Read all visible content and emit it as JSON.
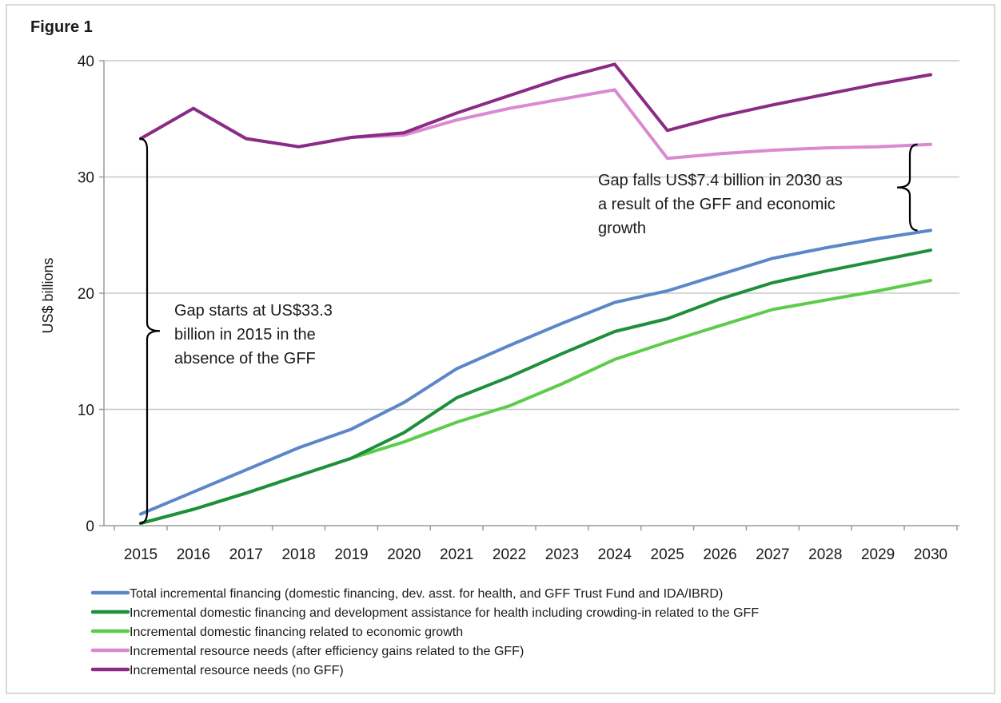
{
  "figure_label": "Figure 1",
  "colors": {
    "frame": "#d9d9d9",
    "grid": "#c8c8c8",
    "axis": "#9a9a9a",
    "text": "#1a1a1a",
    "bracket": "#000000"
  },
  "chart_data": {
    "type": "line",
    "title": "",
    "xlabel": "",
    "ylabel": "US$ billions",
    "ylim": [
      0,
      40
    ],
    "yticks": [
      0,
      10,
      20,
      30,
      40
    ],
    "grid": true,
    "legend_position": "bottom",
    "categories": [
      "2015",
      "2016",
      "2017",
      "2018",
      "2019",
      "2020",
      "2021",
      "2022",
      "2023",
      "2024",
      "2025",
      "2026",
      "2027",
      "2028",
      "2029",
      "2030"
    ],
    "series": [
      {
        "key": "total",
        "name": "Total incremental financing (domestic financing, dev. asst. for health, and GFF Trust Fund and IDA/IBRD)",
        "color": "#5b87c9",
        "values": [
          1.0,
          2.9,
          4.8,
          6.7,
          8.3,
          10.6,
          13.5,
          15.5,
          17.4,
          19.2,
          20.2,
          21.6,
          23.0,
          23.9,
          24.7,
          25.4
        ]
      },
      {
        "key": "domestic_dev",
        "name": "Incremental domestic financing and development assistance for health including crowding-in related to the GFF",
        "color": "#1e8f3a",
        "values": [
          0.2,
          1.4,
          2.8,
          4.3,
          5.8,
          8.0,
          11.0,
          12.8,
          14.8,
          16.7,
          17.8,
          19.5,
          20.9,
          21.9,
          22.8,
          23.7
        ]
      },
      {
        "key": "domestic_growth",
        "name": "Incremental domestic financing related to economic growth",
        "color": "#5ccc4a",
        "values": [
          0.2,
          1.4,
          2.8,
          4.3,
          5.8,
          7.2,
          8.9,
          10.3,
          12.2,
          14.3,
          15.8,
          17.2,
          18.6,
          19.4,
          20.2,
          21.1
        ]
      },
      {
        "key": "needs_efficiency",
        "name": "Incremental resource needs (after efficiency gains related to the GFF)",
        "color": "#d98ad0",
        "values": [
          33.3,
          35.9,
          33.3,
          32.6,
          33.4,
          33.6,
          34.9,
          35.9,
          36.7,
          37.5,
          31.6,
          32.0,
          32.3,
          32.5,
          32.6,
          32.8
        ]
      },
      {
        "key": "needs_no_gff",
        "name": "Incremental resource needs (no GFF)",
        "color": "#8a2b86",
        "values": [
          33.3,
          35.9,
          33.3,
          32.6,
          33.4,
          33.8,
          35.5,
          37.0,
          38.5,
          39.7,
          34.0,
          35.2,
          36.2,
          37.1,
          38.0,
          38.8
        ]
      }
    ],
    "annotations": [
      {
        "key": "gap_start",
        "lines": [
          "Gap starts at US$33.3",
          "billion in 2015 in the",
          "absence of the GFF"
        ],
        "category": "2015",
        "from": 0.2,
        "to": 33.3
      },
      {
        "key": "gap_falls",
        "lines": [
          "Gap falls US$7.4 billion in 2030 as",
          "a result of the GFF and economic",
          "growth"
        ],
        "category": "2030",
        "from": 25.4,
        "to": 32.8
      }
    ]
  }
}
